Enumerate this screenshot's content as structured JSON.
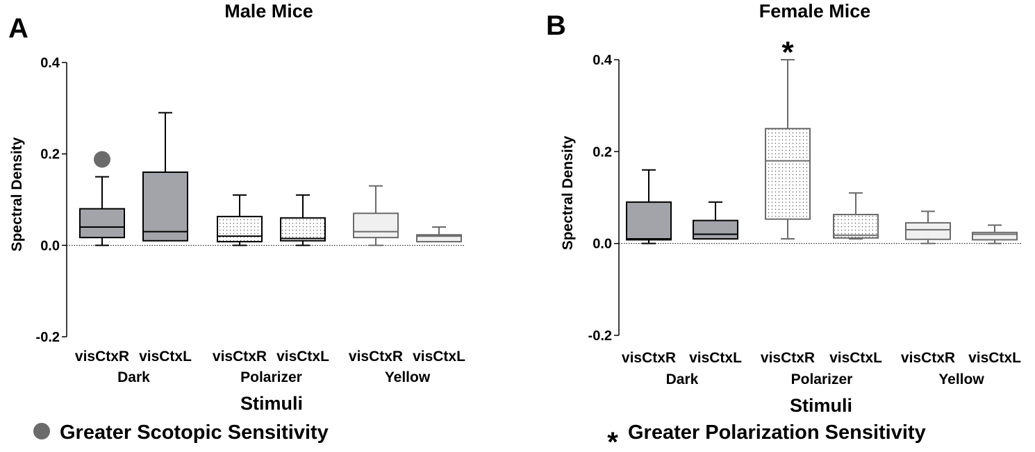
{
  "chart_data": [
    {
      "type": "box",
      "panel_letter": "A",
      "title": "Male Mice",
      "xlabel": "Stimuli",
      "ylabel": "Spectral Density",
      "ylim": [
        -0.2,
        0.4
      ],
      "yticks": [
        -0.2,
        0.0,
        0.2,
        0.4
      ],
      "ytick_labels": [
        "-0.2",
        "0.0",
        "0.2",
        "0.4"
      ],
      "categories": [
        "visCtxR",
        "visCtxL",
        "visCtxR",
        "visCtxL",
        "visCtxR",
        "visCtxL"
      ],
      "groups": [
        {
          "label": "Dark",
          "members": [
            0,
            1
          ]
        },
        {
          "label": "Polarizer",
          "members": [
            2,
            3
          ]
        },
        {
          "label": "Yellow",
          "members": [
            4,
            5
          ]
        }
      ],
      "boxes": [
        {
          "min": 0.0,
          "q1": 0.017,
          "median": 0.04,
          "q3": 0.08,
          "max": 0.15,
          "fill": "#a3a4aa",
          "pattern": false,
          "stroke": "#000000"
        },
        {
          "min": 0.01,
          "q1": 0.01,
          "median": 0.03,
          "q3": 0.16,
          "max": 0.29,
          "fill": "#a3a4aa",
          "pattern": false,
          "stroke": "#000000"
        },
        {
          "min": 0.0,
          "q1": 0.008,
          "median": 0.02,
          "q3": 0.063,
          "max": 0.11,
          "fill": "#ffffff",
          "pattern": true,
          "stroke": "#000000"
        },
        {
          "min": 0.0,
          "q1": 0.01,
          "median": 0.015,
          "q3": 0.06,
          "max": 0.11,
          "fill": "#ffffff",
          "pattern": true,
          "stroke": "#000000"
        },
        {
          "min": 0.0,
          "q1": 0.017,
          "median": 0.03,
          "q3": 0.07,
          "max": 0.13,
          "fill": "#f0f0f0",
          "pattern": false,
          "stroke": "#6a6a6a"
        },
        {
          "min": 0.008,
          "q1": 0.008,
          "median": 0.02,
          "q3": 0.023,
          "max": 0.04,
          "fill": "#f0f0f0",
          "pattern": false,
          "stroke": "#6a6a6a"
        }
      ],
      "marker": {
        "type": "dot",
        "category_index": 0,
        "y": 0.188,
        "color": "#6b6b6b"
      },
      "legend": {
        "symbol": "dot",
        "text": "Greater Scotopic Sensitivity"
      }
    },
    {
      "type": "box",
      "panel_letter": "B",
      "title": "Female Mice",
      "xlabel": "Stimuli",
      "ylabel": "Spectral Density",
      "ylim": [
        -0.2,
        0.4
      ],
      "yticks": [
        -0.2,
        0.0,
        0.2,
        0.4
      ],
      "ytick_labels": [
        "-0.2",
        "0.0",
        "0.2",
        "0.4"
      ],
      "categories": [
        "visCtxR",
        "visCtxL",
        "visCtxR",
        "visCtxL",
        "visCtxR",
        "visCtxL"
      ],
      "groups": [
        {
          "label": "Dark",
          "members": [
            0,
            1
          ]
        },
        {
          "label": "Polarizer",
          "members": [
            2,
            3
          ]
        },
        {
          "label": "Yellow",
          "members": [
            4,
            5
          ]
        }
      ],
      "boxes": [
        {
          "min": 0.0,
          "q1": 0.008,
          "median": 0.01,
          "q3": 0.09,
          "max": 0.16,
          "fill": "#a3a4aa",
          "pattern": false,
          "stroke": "#000000"
        },
        {
          "min": 0.01,
          "q1": 0.01,
          "median": 0.02,
          "q3": 0.05,
          "max": 0.09,
          "fill": "#a3a4aa",
          "pattern": false,
          "stroke": "#000000"
        },
        {
          "min": 0.01,
          "q1": 0.053,
          "median": 0.18,
          "q3": 0.25,
          "max": 0.4,
          "fill": "#ffffff",
          "pattern": true,
          "stroke": "#6a6a6a"
        },
        {
          "min": 0.01,
          "q1": 0.012,
          "median": 0.018,
          "q3": 0.063,
          "max": 0.11,
          "fill": "#ffffff",
          "pattern": true,
          "stroke": "#6a6a6a"
        },
        {
          "min": 0.0,
          "q1": 0.009,
          "median": 0.03,
          "q3": 0.045,
          "max": 0.07,
          "fill": "#f0f0f0",
          "pattern": false,
          "stroke": "#6a6a6a"
        },
        {
          "min": 0.0,
          "q1": 0.008,
          "median": 0.02,
          "q3": 0.024,
          "max": 0.04,
          "fill": "#f0f0f0",
          "pattern": false,
          "stroke": "#6a6a6a"
        }
      ],
      "marker": {
        "type": "asterisk",
        "category_index": 2,
        "y": 0.43,
        "text": "*",
        "color": "#000000"
      },
      "legend": {
        "symbol": "asterisk",
        "symbol_text": "*",
        "text": "Greater Polarization Sensitivity"
      }
    }
  ]
}
